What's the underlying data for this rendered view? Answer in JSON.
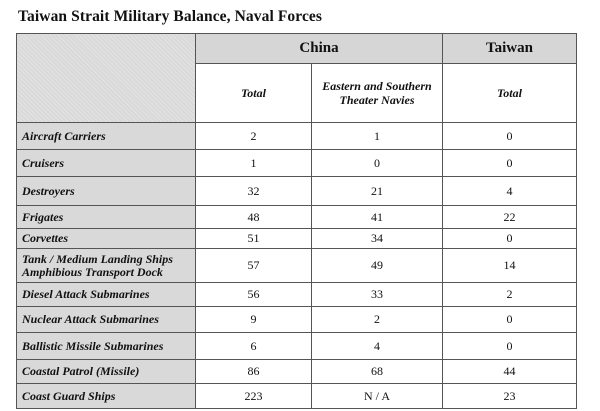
{
  "title": "Taiwan Strait Military Balance, Naval Forces",
  "table": {
    "groups": {
      "china": "China",
      "taiwan": "Taiwan"
    },
    "subheaders": {
      "china_total": "Total",
      "china_eastern_southern": "Eastern and Southern Theater Navies",
      "taiwan_total": "Total"
    },
    "rows": [
      {
        "label": "Aircraft Carriers",
        "china_total": "2",
        "china_eastern_southern": "1",
        "taiwan_total": "0"
      },
      {
        "label": "Cruisers",
        "china_total": "1",
        "china_eastern_southern": "0",
        "taiwan_total": "0"
      },
      {
        "label": "Destroyers",
        "china_total": "32",
        "china_eastern_southern": "21",
        "taiwan_total": "4"
      },
      {
        "label": "Frigates",
        "china_total": "48",
        "china_eastern_southern": "41",
        "taiwan_total": "22"
      },
      {
        "label": "Corvettes",
        "china_total": "51",
        "china_eastern_southern": "34",
        "taiwan_total": "0"
      },
      {
        "label": "Tank / Medium Landing Ships Amphibious Transport Dock",
        "china_total": "57",
        "china_eastern_southern": "49",
        "taiwan_total": "14"
      },
      {
        "label": "Diesel Attack Submarines",
        "china_total": "56",
        "china_eastern_southern": "33",
        "taiwan_total": "2"
      },
      {
        "label": "Nuclear Attack Submarines",
        "china_total": "9",
        "china_eastern_southern": "2",
        "taiwan_total": "0"
      },
      {
        "label": "Ballistic Missile Submarines",
        "china_total": "6",
        "china_eastern_southern": "4",
        "taiwan_total": "0"
      },
      {
        "label": "Coastal Patrol (Missile)",
        "china_total": "86",
        "china_eastern_southern": "68",
        "taiwan_total": "44"
      },
      {
        "label": "Coast Guard Ships",
        "china_total": "223",
        "china_eastern_southern": "N / A",
        "taiwan_total": "23"
      }
    ]
  }
}
